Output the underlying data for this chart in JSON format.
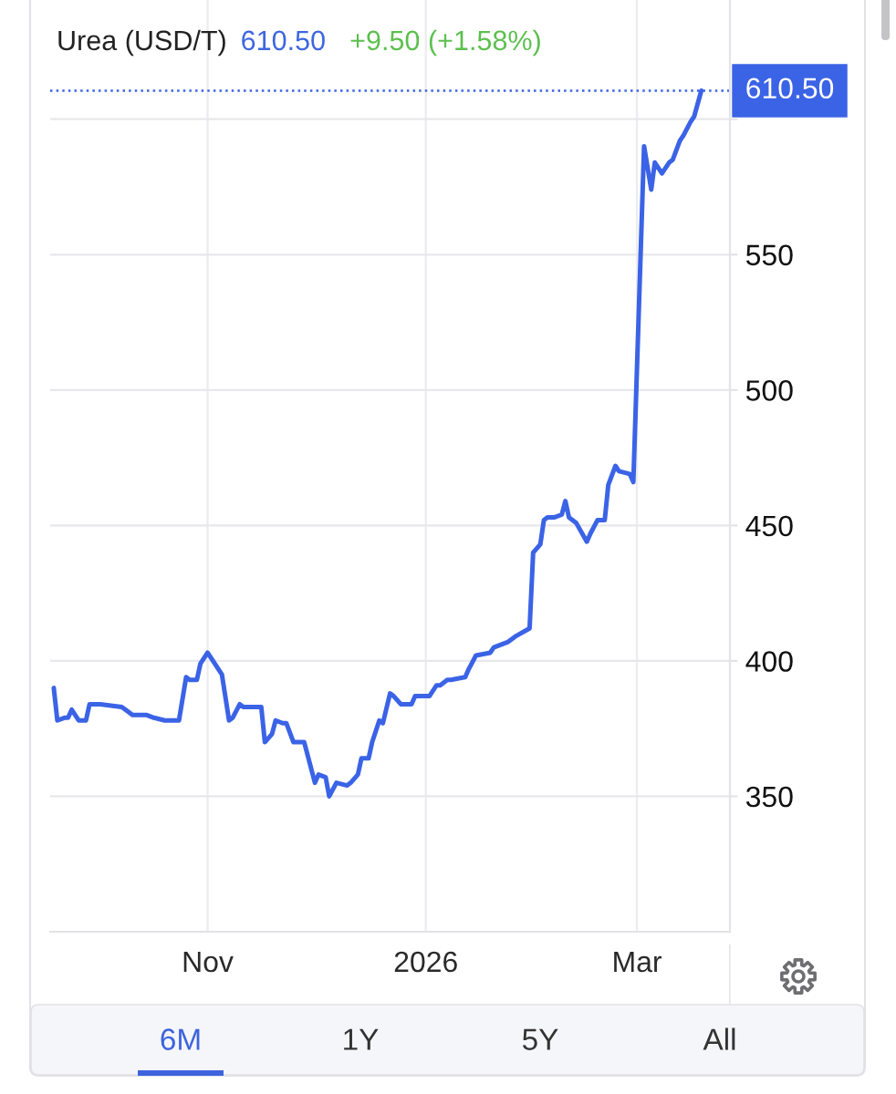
{
  "chart_data": {
    "type": "line",
    "title": "Urea (USD/T)",
    "annotations": [
      "610.50",
      "+9.50 (+1.58%)",
      "6M",
      "1Y",
      "5Y",
      "All"
    ],
    "x": [
      "2025-09-19",
      "2025-09-20",
      "2025-09-22",
      "2025-09-23",
      "2025-09-24",
      "2025-09-26",
      "2025-09-28",
      "2025-09-29",
      "2025-10-02",
      "2025-10-08",
      "2025-10-10",
      "2025-10-11",
      "2025-10-15",
      "2025-10-17",
      "2025-10-20",
      "2025-10-24",
      "2025-10-26",
      "2025-10-27",
      "2025-10-29",
      "2025-10-30",
      "2025-11-01",
      "2025-11-02",
      "2025-11-04",
      "2025-11-05",
      "2025-11-07",
      "2025-11-08",
      "2025-11-10",
      "2025-11-11",
      "2025-11-16",
      "2025-11-17",
      "2025-11-19",
      "2025-11-20",
      "2025-11-22",
      "2025-11-23",
      "2025-11-25",
      "2025-11-28",
      "2025-12-01",
      "2025-12-02",
      "2025-12-04",
      "2025-12-05",
      "2025-12-07",
      "2025-12-10",
      "2025-12-11",
      "2025-12-13",
      "2025-12-14",
      "2025-12-16",
      "2025-12-17",
      "2025-12-19",
      "2025-12-20",
      "2025-12-22",
      "2025-12-23",
      "2025-12-25",
      "2025-12-28",
      "2025-12-29",
      "2026-01-02",
      "2026-01-04",
      "2026-01-05",
      "2026-01-07",
      "2026-01-08",
      "2026-01-12",
      "2026-01-13",
      "2026-01-15",
      "2026-01-19",
      "2026-01-20",
      "2026-01-24",
      "2026-01-26",
      "2026-01-30",
      "2026-01-31",
      "2026-02-02",
      "2026-02-03",
      "2026-02-04",
      "2026-02-06",
      "2026-02-08",
      "2026-02-09",
      "2026-02-10",
      "2026-02-12",
      "2026-02-15",
      "2026-02-16",
      "2026-02-18",
      "2026-02-20",
      "2026-02-21",
      "2026-02-23",
      "2026-02-24",
      "2026-02-27",
      "2026-02-28",
      "2026-03-03",
      "2026-03-05",
      "2026-03-06",
      "2026-03-08",
      "2026-03-10",
      "2026-03-11",
      "2026-03-13",
      "2026-03-14",
      "2026-03-16",
      "2026-03-17",
      "2026-03-19"
    ],
    "series": [
      {
        "color": "#3b63e6",
        "values": [
          390,
          378,
          379,
          379,
          382,
          378,
          378,
          384,
          384,
          383,
          381,
          380,
          380,
          379,
          378,
          378,
          394,
          393,
          393,
          399,
          403,
          401,
          397,
          395,
          378,
          379,
          384,
          383,
          383,
          370,
          373,
          378,
          377,
          377,
          370,
          370,
          355,
          358,
          357,
          350,
          355,
          354,
          355,
          358,
          364,
          364,
          370,
          378,
          377,
          388,
          387,
          384,
          384,
          387,
          387,
          391,
          391,
          393,
          393,
          394,
          397,
          402,
          403,
          405,
          407,
          409,
          412,
          440,
          443,
          452,
          453,
          453,
          454,
          459,
          453,
          451,
          444,
          447,
          452,
          452,
          465,
          472,
          470,
          469,
          466,
          590,
          574,
          584,
          580,
          584,
          585,
          592,
          594,
          599,
          601,
          610.5
        ]
      }
    ],
    "xlim": [
      "2025-09-18",
      "2026-03-27"
    ],
    "xticks": [
      {
        "value": "2025-11-01",
        "label": "Nov"
      },
      {
        "value": "2026-01-01",
        "label": "2026"
      },
      {
        "value": "2026-03-01",
        "label": "Mar"
      }
    ],
    "ylim": [
      300,
      644
    ],
    "yticks": [
      350,
      400,
      450,
      500,
      550,
      {
        "value": 600,
        "label": null
      }
    ],
    "grid": true,
    "ref_lines": [
      {
        "axis": "y",
        "value": 610.5,
        "label": "610.50",
        "color": "#3b63e6",
        "line_style": "dotted"
      }
    ]
  }
}
